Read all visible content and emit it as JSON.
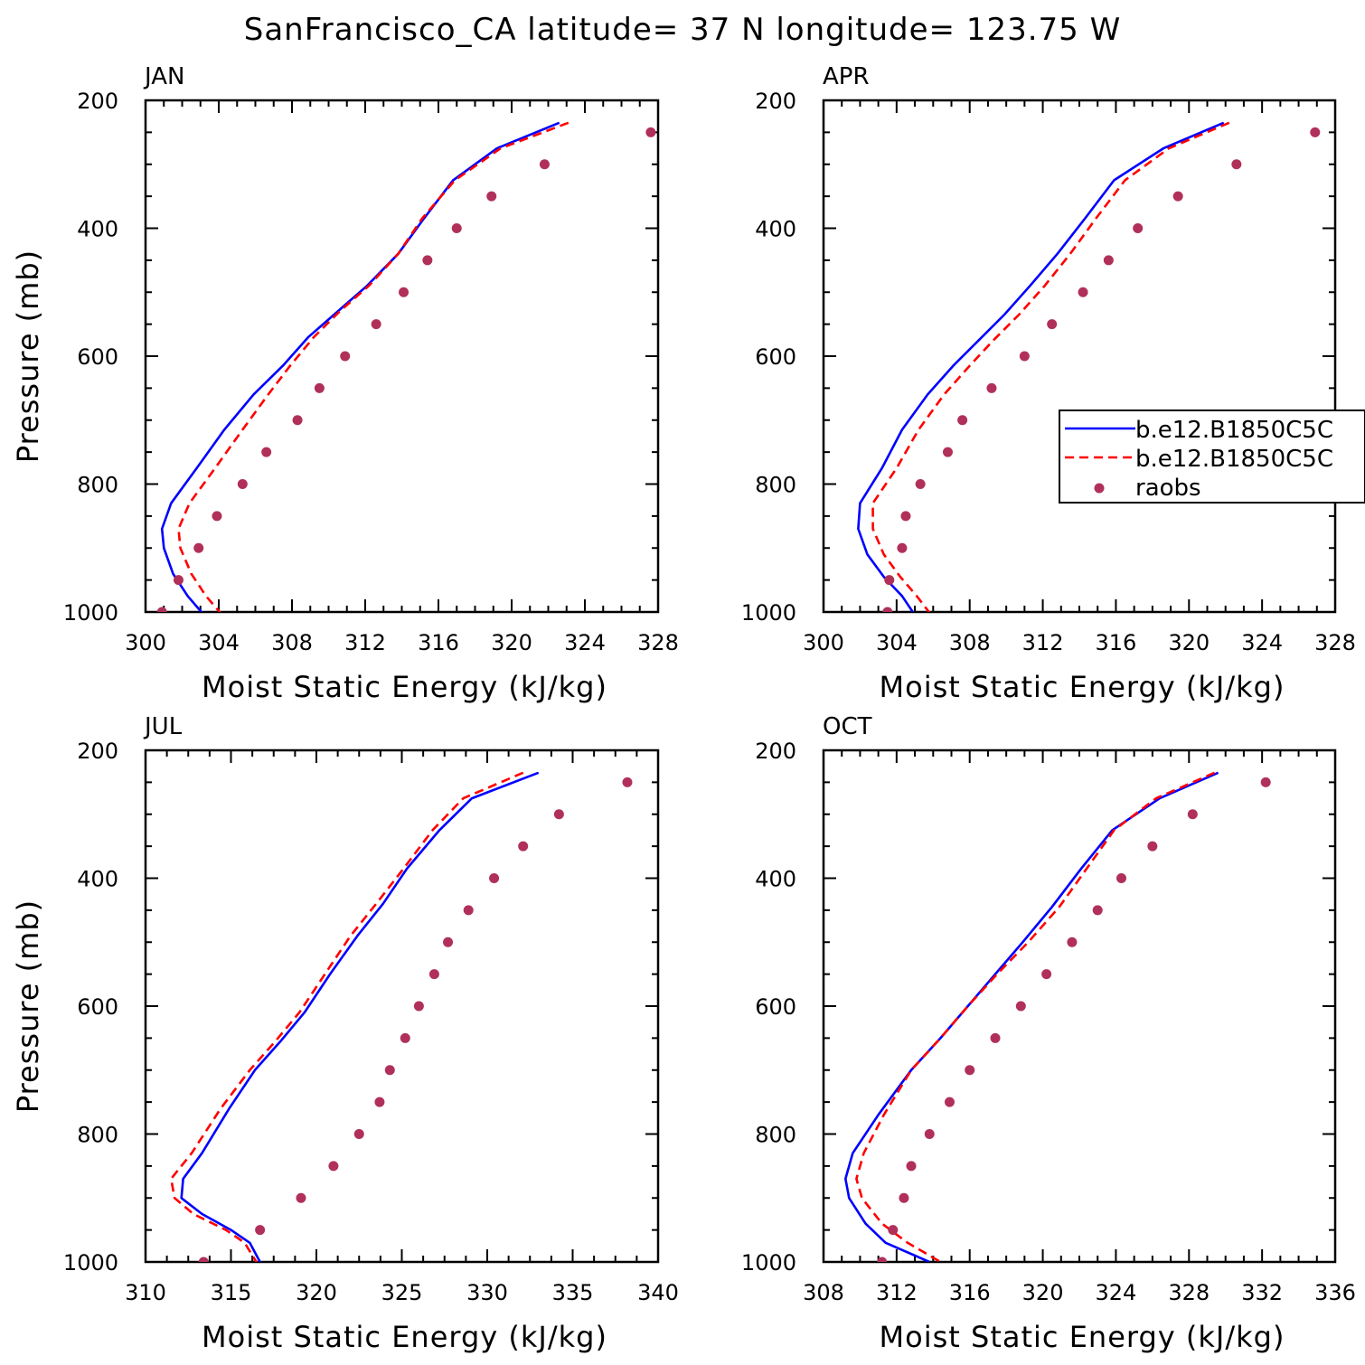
{
  "title": "SanFrancisco_CA  latitude= 37 N longitude= 123.75 W",
  "colors": {
    "model1": "#0000ff",
    "model2": "#ff0000",
    "obs": "#b0305a"
  },
  "legend": {
    "entries": [
      {
        "label": "b.e12.B1850C5C",
        "style": "solid-line",
        "color": "#0000ff"
      },
      {
        "label": "b.e12.B1850C5C",
        "style": "dashed-line",
        "color": "#ff0000"
      },
      {
        "label": "raobs",
        "style": "marker",
        "color": "#b0305a"
      }
    ],
    "placement": "right of APR panel"
  },
  "chart_data": [
    {
      "type": "line",
      "panel": "JAN",
      "xlabel": "Moist Static Energy (kJ/kg)",
      "ylabel": "Pressure (mb)",
      "xlim": [
        300,
        328
      ],
      "xticks": [
        300,
        304,
        308,
        312,
        316,
        320,
        324,
        328
      ],
      "ylim": [
        200,
        1000
      ],
      "yticks": [
        200,
        400,
        600,
        800,
        1000
      ],
      "y_inverted": true,
      "series": [
        {
          "name": "b.e12.B1850C5C",
          "style": "solid",
          "color": "#0000ff",
          "x": [
            322.6,
            319.2,
            316.8,
            315.2,
            313.8,
            312.1,
            310.5,
            308.9,
            307.5,
            305.9,
            304.3,
            302.8,
            301.4,
            300.9,
            301.0,
            301.5,
            302.3,
            303.2
          ],
          "y": [
            235,
            275,
            325,
            385,
            440,
            490,
            530,
            570,
            615,
            660,
            715,
            775,
            830,
            870,
            900,
            940,
            975,
            1005
          ]
        },
        {
          "name": "b.e12.B1850C5C",
          "style": "dashed",
          "color": "#ff0000",
          "x": [
            323.1,
            319.4,
            316.9,
            315.1,
            313.8,
            312.2,
            310.6,
            309.2,
            307.9,
            306.7,
            305.3,
            303.8,
            302.4,
            301.8,
            301.9,
            302.5,
            303.3,
            304.2
          ],
          "y": [
            235,
            275,
            325,
            385,
            440,
            490,
            530,
            570,
            615,
            660,
            715,
            775,
            830,
            870,
            900,
            940,
            975,
            1005
          ]
        },
        {
          "name": "raobs",
          "style": "marker",
          "color": "#b0305a",
          "x": [
            327.6,
            321.8,
            318.9,
            317.0,
            315.4,
            314.1,
            312.6,
            310.9,
            309.5,
            308.3,
            306.6,
            305.3,
            303.9,
            302.9,
            301.8,
            300.9
          ],
          "y": [
            250,
            300,
            350,
            400,
            450,
            500,
            550,
            600,
            650,
            700,
            750,
            800,
            850,
            900,
            950,
            1000
          ]
        }
      ]
    },
    {
      "type": "line",
      "panel": "APR",
      "xlabel": "Moist Static Energy (kJ/kg)",
      "ylabel": "",
      "xlim": [
        300,
        328
      ],
      "xticks": [
        300,
        304,
        308,
        312,
        316,
        320,
        324,
        328
      ],
      "ylim": [
        200,
        1000
      ],
      "yticks": [
        200,
        400,
        600,
        800,
        1000
      ],
      "y_inverted": true,
      "series": [
        {
          "name": "b.e12.B1850C5C",
          "style": "solid",
          "color": "#0000ff",
          "x": [
            321.9,
            318.6,
            315.9,
            314.3,
            312.8,
            311.3,
            309.9,
            308.5,
            307.1,
            305.7,
            304.3,
            303.2,
            302.0,
            301.9,
            302.4,
            303.3,
            304.3,
            305.0
          ],
          "y": [
            235,
            275,
            325,
            385,
            440,
            490,
            535,
            575,
            615,
            660,
            715,
            775,
            830,
            870,
            910,
            945,
            975,
            1005
          ]
        },
        {
          "name": "b.e12.B1850C5C",
          "style": "dashed",
          "color": "#ff0000",
          "x": [
            322.2,
            318.9,
            316.5,
            314.9,
            313.5,
            312.1,
            310.7,
            309.3,
            308.0,
            306.6,
            305.2,
            304.0,
            302.7,
            302.7,
            303.3,
            304.2,
            305.1,
            305.9
          ],
          "y": [
            235,
            275,
            325,
            385,
            440,
            490,
            535,
            575,
            615,
            660,
            715,
            775,
            830,
            870,
            910,
            945,
            975,
            1005
          ]
        },
        {
          "name": "raobs",
          "style": "marker",
          "color": "#b0305a",
          "x": [
            326.9,
            322.6,
            319.4,
            317.2,
            315.6,
            314.2,
            312.5,
            311.0,
            309.2,
            307.6,
            306.8,
            305.3,
            304.5,
            304.3,
            303.6,
            303.5
          ],
          "y": [
            250,
            300,
            350,
            400,
            450,
            500,
            550,
            600,
            650,
            700,
            750,
            800,
            850,
            900,
            950,
            1000
          ]
        }
      ]
    },
    {
      "type": "line",
      "panel": "JUL",
      "xlabel": "Moist Static Energy (kJ/kg)",
      "ylabel": "Pressure (mb)",
      "xlim": [
        310,
        340
      ],
      "xticks": [
        310,
        315,
        320,
        325,
        330,
        335,
        340
      ],
      "ylim": [
        200,
        1000
      ],
      "yticks": [
        200,
        400,
        600,
        800,
        1000
      ],
      "y_inverted": true,
      "series": [
        {
          "name": "b.e12.B1850C5C",
          "style": "solid",
          "color": "#0000ff",
          "x": [
            333.0,
            329.1,
            327.2,
            325.3,
            323.9,
            322.4,
            320.8,
            319.3,
            317.9,
            316.4,
            314.9,
            313.3,
            312.2,
            312.1,
            313.3,
            315.0,
            316.1,
            316.8
          ],
          "y": [
            235,
            275,
            325,
            385,
            440,
            490,
            550,
            610,
            655,
            700,
            760,
            830,
            870,
            900,
            925,
            950,
            970,
            1005
          ]
        },
        {
          "name": "b.e12.B1850C5C",
          "style": "dashed",
          "color": "#ff0000",
          "x": [
            332.1,
            328.6,
            326.8,
            325.1,
            323.5,
            322.0,
            320.5,
            319.0,
            317.6,
            316.1,
            314.4,
            312.7,
            311.5,
            311.7,
            312.8,
            314.7,
            315.8,
            316.6
          ],
          "y": [
            235,
            275,
            325,
            385,
            440,
            490,
            550,
            610,
            655,
            700,
            760,
            830,
            870,
            900,
            925,
            950,
            970,
            1005
          ]
        },
        {
          "name": "raobs",
          "style": "marker",
          "color": "#b0305a",
          "x": [
            338.2,
            334.2,
            332.1,
            330.4,
            328.9,
            327.7,
            326.9,
            326.0,
            325.2,
            324.3,
            323.7,
            322.5,
            321.0,
            319.1,
            316.7,
            313.4
          ],
          "y": [
            250,
            300,
            350,
            400,
            450,
            500,
            550,
            600,
            650,
            700,
            750,
            800,
            850,
            900,
            950,
            1000
          ]
        }
      ]
    },
    {
      "type": "line",
      "panel": "OCT",
      "xlabel": "Moist Static Energy (kJ/kg)",
      "ylabel": "",
      "xlim": [
        308,
        336
      ],
      "xticks": [
        308,
        312,
        316,
        320,
        324,
        328,
        332,
        336
      ],
      "ylim": [
        200,
        1000
      ],
      "yticks": [
        200,
        400,
        600,
        800,
        1000
      ],
      "y_inverted": true,
      "series": [
        {
          "name": "b.e12.B1850C5C",
          "style": "solid",
          "color": "#0000ff",
          "x": [
            329.6,
            326.4,
            323.8,
            322.1,
            320.5,
            318.9,
            317.4,
            315.9,
            314.4,
            312.8,
            311.0,
            309.6,
            309.2,
            309.4,
            310.3,
            311.4,
            313.8
          ],
          "y": [
            235,
            275,
            325,
            385,
            445,
            500,
            550,
            600,
            650,
            700,
            770,
            830,
            870,
            900,
            940,
            970,
            1000
          ]
        },
        {
          "name": "b.e12.B1850C5C",
          "style": "dashed",
          "color": "#ff0000",
          "x": [
            329.4,
            326.2,
            323.9,
            322.4,
            320.9,
            319.2,
            317.5,
            315.9,
            314.4,
            312.8,
            311.3,
            310.2,
            309.8,
            310.1,
            311.2,
            312.6,
            314.7
          ],
          "y": [
            235,
            275,
            325,
            385,
            445,
            500,
            550,
            600,
            650,
            700,
            770,
            830,
            870,
            900,
            940,
            970,
            1005
          ]
        },
        {
          "name": "raobs",
          "style": "marker",
          "color": "#b0305a",
          "x": [
            332.2,
            328.2,
            326.0,
            324.3,
            323.0,
            321.6,
            320.2,
            318.8,
            317.4,
            316.0,
            314.9,
            313.8,
            312.8,
            312.4,
            311.8,
            311.2
          ],
          "y": [
            250,
            300,
            350,
            400,
            450,
            500,
            550,
            600,
            650,
            700,
            750,
            800,
            850,
            900,
            950,
            1000
          ]
        }
      ]
    }
  ]
}
